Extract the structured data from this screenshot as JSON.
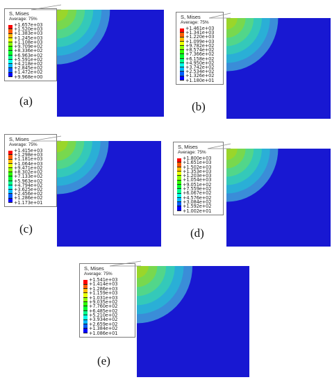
{
  "palette": [
    "#ff0000",
    "#ff5d00",
    "#ffb900",
    "#e8ff00",
    "#8bff00",
    "#2eff00",
    "#00ff2e",
    "#00ff8b",
    "#00ffe8",
    "#00b9ff",
    "#005dff",
    "#0000ff"
  ],
  "contour_palette": [
    "#3a8dd8",
    "#2aafd6",
    "#34c9b9",
    "#52d68a",
    "#78d84e",
    "#9ad62a"
  ],
  "background_blue": "#1818d2",
  "panels": [
    {
      "caption": "(a)",
      "legend": {
        "title": "S, Mises",
        "subtitle": "Average: 75%",
        "values": [
          "+1.657e+03",
          "+1.520e+03",
          "+1.383e+03",
          "+1.245e+03",
          "+1.108e+03",
          "+9.709e+02",
          "+8.336e+02",
          "+6.963e+02",
          "+5.591e+02",
          "+4.218e+02",
          "+2.845e+02",
          "+1.472e+02",
          "+9.968e+00"
        ]
      },
      "stress_field": {
        "peak_level": 6,
        "contour_bands": 6
      }
    },
    {
      "caption": "(b)",
      "legend": {
        "title": "S, Mises",
        "subtitle": "Average: 75%",
        "values": [
          "+1.461e+03",
          "+1.341e+03",
          "+1.220e+03",
          "+1.099e+03",
          "+9.782e+02",
          "+8.574e+02",
          "+7.366e+02",
          "+6.158e+02",
          "+4.950e+02",
          "+3.742e+02",
          "+2.534e+02",
          "+1.326e+02",
          "+1.180e+01"
        ]
      },
      "stress_field": {
        "peak_level": 6,
        "contour_bands": 6
      }
    },
    {
      "caption": "(c)",
      "legend": {
        "title": "S, Mises",
        "subtitle": "Average: 75%",
        "values": [
          "+1.415e+03",
          "+1.298e+03",
          "+1.181e+03",
          "+1.064e+03",
          "+9.471e+02",
          "+8.302e+02",
          "+7.133e+02",
          "+5.963e+02",
          "+4.794e+02",
          "+3.625e+02",
          "+2.456e+02",
          "+1.286e+02",
          "+1.173e+01"
        ]
      },
      "stress_field": {
        "peak_level": 6,
        "contour_bands": 6
      }
    },
    {
      "caption": "(d)",
      "legend": {
        "title": "S, Mises",
        "subtitle": "Average: 75%",
        "values": [
          "+1.800e+03",
          "+1.651e+03",
          "+1.502e+03",
          "+1.353e+03",
          "+1.203e+03",
          "+1.054e+03",
          "+9.051e+02",
          "+7.559e+02",
          "+6.067e+02",
          "+4.576e+02",
          "+3.084e+02",
          "+1.592e+02",
          "+1.002e+01"
        ]
      },
      "stress_field": {
        "peak_level": 6,
        "contour_bands": 6
      }
    },
    {
      "caption": "(e)",
      "legend": {
        "title": "S, Mises",
        "subtitle": "Average: 75%",
        "values": [
          "+1.541e+03",
          "+1.414e+03",
          "+1.286e+03",
          "+1.159e+03",
          "+1.031e+03",
          "+9.035e+02",
          "+7.760e+02",
          "+6.485e+02",
          "+5.210e+02",
          "+3.934e+02",
          "+2.659e+02",
          "+1.384e+02",
          "+1.086e+01"
        ]
      },
      "stress_field": {
        "peak_level": 6,
        "contour_bands": 6
      }
    }
  ]
}
